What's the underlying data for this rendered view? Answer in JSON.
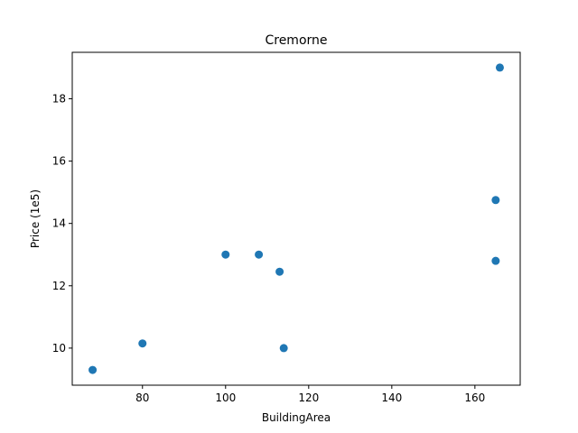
{
  "chart_data": {
    "type": "scatter",
    "title": "Cremorne",
    "xlabel": "BuildingArea",
    "ylabel": "Price (1e5)",
    "xlim": [
      63.1,
      170.9
    ],
    "ylim": [
      8.81,
      19.49
    ],
    "xticks": [
      80,
      100,
      120,
      140,
      160
    ],
    "yticks": [
      10,
      12,
      14,
      16,
      18
    ],
    "grid": false,
    "marker_color": "#1f77b4",
    "points": [
      {
        "x": 68,
        "y": 9.3
      },
      {
        "x": 80,
        "y": 10.15
      },
      {
        "x": 100,
        "y": 13.0
      },
      {
        "x": 108,
        "y": 13.0
      },
      {
        "x": 113,
        "y": 12.45
      },
      {
        "x": 114,
        "y": 10.0
      },
      {
        "x": 165,
        "y": 14.75
      },
      {
        "x": 165,
        "y": 12.8
      },
      {
        "x": 166,
        "y": 19.0
      }
    ]
  }
}
